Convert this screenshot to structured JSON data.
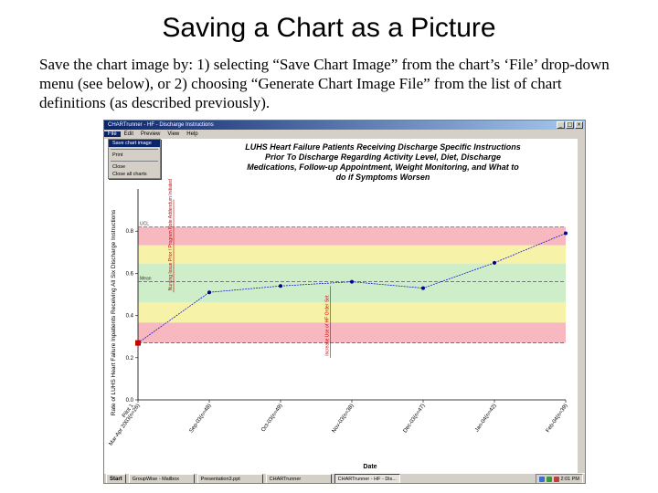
{
  "slide": {
    "title": "Saving a Chart as a Picture",
    "body": "Save the chart image by: 1) selecting “Save Chart Image” from the chart’s ‘File’ drop-down menu (see below), or 2) choosing “Generate Chart Image File” from the list of chart definitions (as described previously)."
  },
  "window": {
    "title": "CHARTrunner - HF - Discharge Instructions",
    "buttons": [
      "_",
      "□",
      "×"
    ]
  },
  "menubar": [
    "File",
    "Edit",
    "Preview",
    "View",
    "Help"
  ],
  "file_menu": {
    "items": [
      "Save chart image",
      "Print",
      "Close",
      "Close all charts"
    ],
    "highlighted": "Save chart image"
  },
  "chart": {
    "title": "LUHS Heart Failure Patients Receiving Discharge Specific Instructions Prior To Discharge Regarding Activity Level, Diet, Discharge Medications, Follow-up Appointment, Weight Monitoring, and What to do if Symptoms Worsen",
    "ylabel": "Rate of LUHS Heart Failure Inpatients Receiving All Six Discharge Instructions",
    "xlabel": "Date",
    "mean_label": "Mean",
    "ucl_label": "UCL",
    "annotations": [
      "Nursing Issue Prior / Program Note Addendum Initiated",
      "Increase Use of HF Order Set"
    ]
  },
  "chart_data": {
    "type": "line",
    "categories": [
      "Mar-Apr 2003(n=26)",
      "Sep-03(n=48)",
      "Oct-03(n=49)",
      "Nov-03(n=38)",
      "Dec-03(n=47)",
      "Jan-04(n=42)",
      "Feb-04(n=39)"
    ],
    "tick_labels": [
      "Pilot 1\nMar-Apr 2003(n=26)",
      "Sep-03(n=48)",
      "Oct-03(n=49)",
      "Nov-03(n=38)",
      "Dec-03(n=47)",
      "Jan-04(n=42)",
      "Feb-04(n=39)"
    ],
    "values": [
      0.27,
      0.51,
      0.54,
      0.56,
      0.53,
      0.65,
      0.79
    ],
    "ylim": [
      0.0,
      1.0
    ],
    "yticks": [
      "0.0",
      "0.2",
      "0.4",
      "0.6",
      "0.8"
    ],
    "yticks_values": [
      0.0,
      0.2,
      0.4,
      0.6,
      0.8
    ],
    "mean": 0.56,
    "ucl": 0.82,
    "lcl": 0.27,
    "zone_colors": {
      "red": "#f7b8c0",
      "yellow": "#f6f3a8",
      "green": "#cdeec9"
    },
    "line_color": "#0000cc",
    "marker_color": "#00008b",
    "first_point_color": "#cc0000",
    "annotation_color": "#cc0000",
    "grid": false
  },
  "taskbar": {
    "start": "Start",
    "tasks": [
      "GroupWise - Mailbox",
      "Presentation3.ppt",
      "CHARTrunner",
      "CHARTrunner - HF - Dis..."
    ],
    "active_task": 3,
    "clock": "2:01 PM"
  }
}
